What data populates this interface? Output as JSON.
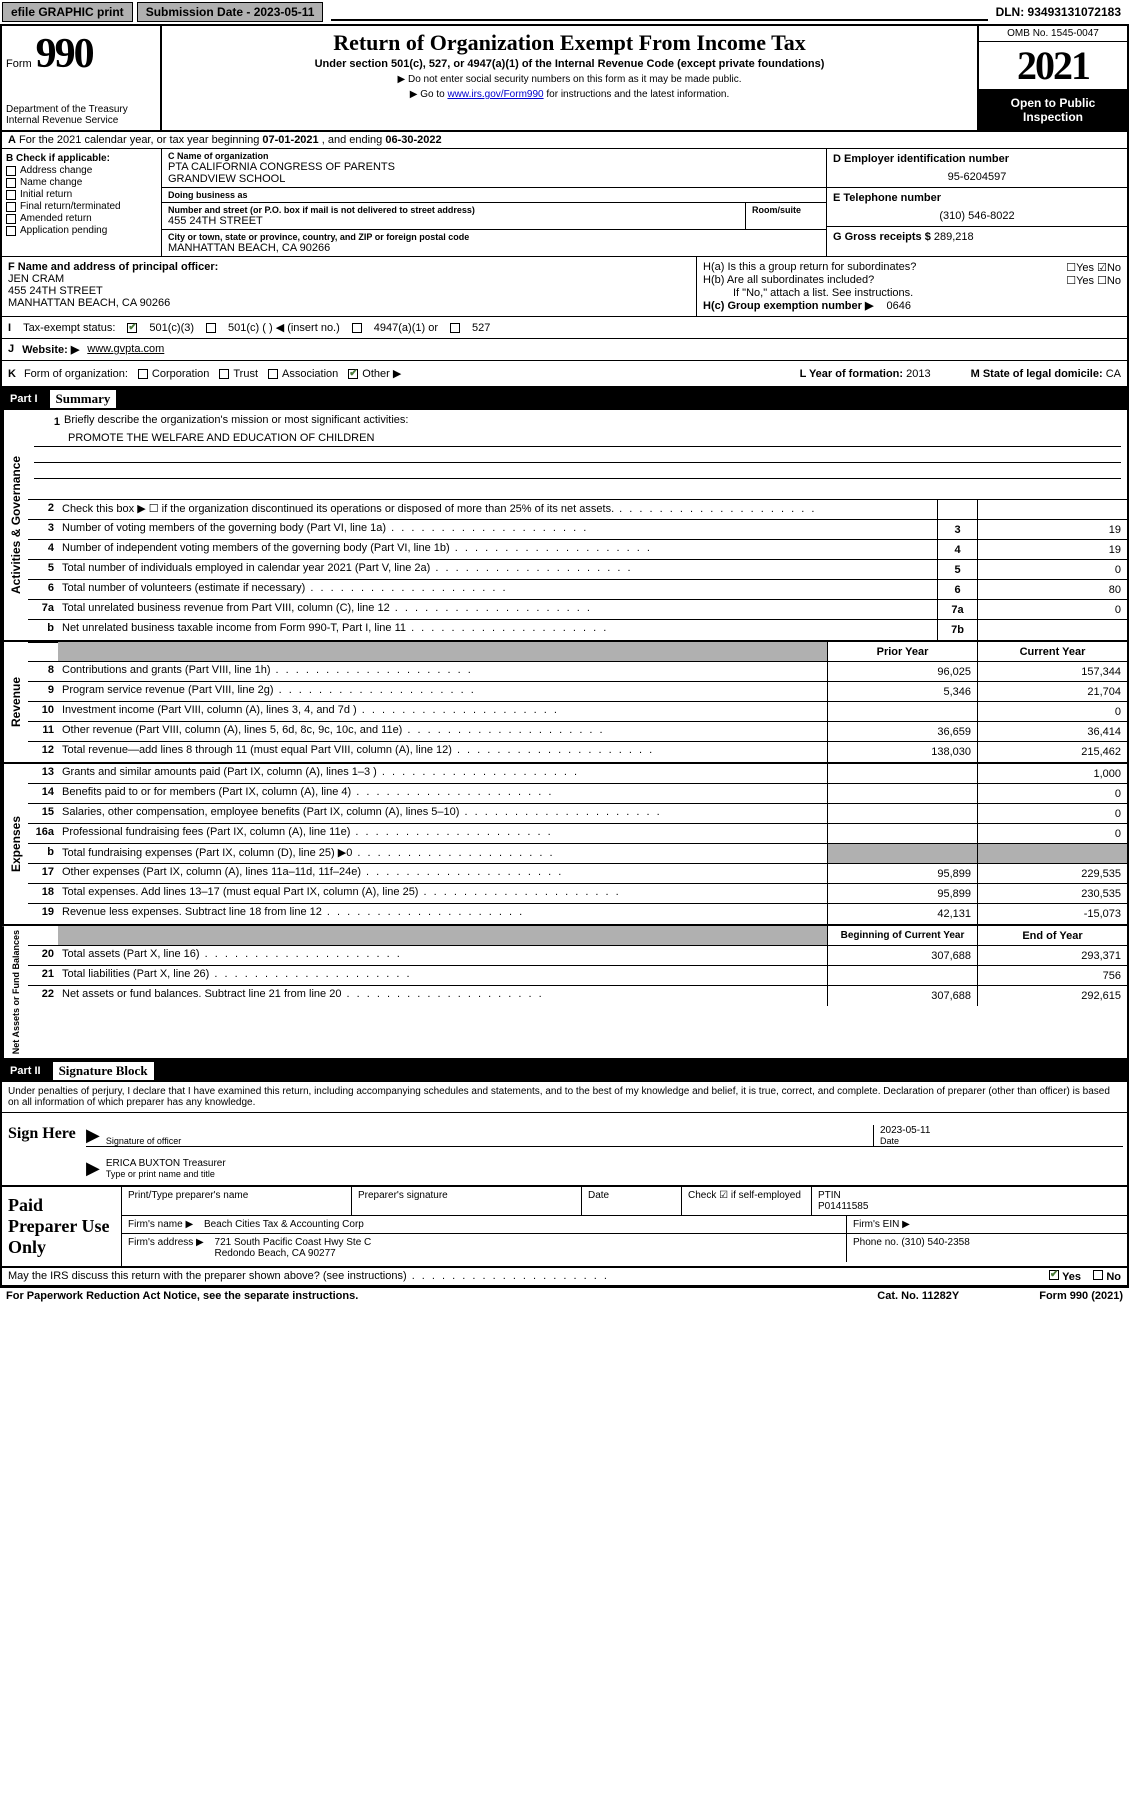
{
  "top_bar": {
    "efile": "efile GRAPHIC print",
    "submission_label": "Submission Date - 2023-05-11",
    "dln": "DLN: 93493131072183"
  },
  "header": {
    "form_word": "Form",
    "form_num": "990",
    "dept": "Department of the Treasury\nInternal Revenue Service",
    "title": "Return of Organization Exempt From Income Tax",
    "sub": "Under section 501(c), 527, or 4947(a)(1) of the Internal Revenue Code (except private foundations)",
    "note1": "Do not enter social security numbers on this form as it may be made public.",
    "note2_pre": "Go to ",
    "note2_link": "www.irs.gov/Form990",
    "note2_post": " for instructions and the latest information.",
    "omb": "OMB No. 1545-0047",
    "year": "2021",
    "inspection": "Open to Public Inspection"
  },
  "row_a": {
    "label_a": "A",
    "text": "For the 2021 calendar year, or tax year beginning ",
    "begin": "07-01-2021",
    "mid": " , and ending ",
    "end": "06-30-2022"
  },
  "section_b": {
    "label": "B Check if applicable:",
    "items": [
      "Address change",
      "Name change",
      "Initial return",
      "Final return/terminated",
      "Amended return",
      "Application pending"
    ]
  },
  "section_c": {
    "name_label": "C Name of organization",
    "name": "PTA CALIFORNIA CONGRESS OF PARENTS\nGRANDVIEW SCHOOL",
    "dba_label": "Doing business as",
    "dba": "",
    "addr_label": "Number and street (or P.O. box if mail is not delivered to street address)",
    "room_label": "Room/suite",
    "addr": "455 24TH STREET",
    "city_label": "City or town, state or province, country, and ZIP or foreign postal code",
    "city": "MANHATTAN BEACH, CA  90266"
  },
  "section_d": {
    "label": "D Employer identification number",
    "val": "95-6204597"
  },
  "section_e": {
    "label": "E Telephone number",
    "val": "(310) 546-8022"
  },
  "section_g": {
    "label": "G Gross receipts $",
    "val": "289,218"
  },
  "section_f": {
    "label": "F Name and address of principal officer:",
    "name": "JEN CRAM",
    "addr": "455 24TH STREET\nMANHATTAN BEACH, CA  90266"
  },
  "section_h": {
    "ha": "H(a)  Is this a group return for subordinates?",
    "ha_ans": "No",
    "hb": "H(b)  Are all subordinates included?",
    "hb_note": "If \"No,\" attach a list. See instructions.",
    "hc": "H(c)  Group exemption number ▶",
    "hc_val": "0646"
  },
  "row_i": {
    "label": "I",
    "text": "Tax-exempt status:",
    "opts": [
      "501(c)(3)",
      "501(c) (  ) ◀ (insert no.)",
      "4947(a)(1) or",
      "527"
    ]
  },
  "row_j": {
    "label": "J",
    "text": "Website: ▶",
    "val": "www.gvpta.com"
  },
  "row_k": {
    "label": "K",
    "text": "Form of organization:",
    "opts": [
      "Corporation",
      "Trust",
      "Association",
      "Other ▶"
    ],
    "l_label": "L Year of formation:",
    "l_val": "2013",
    "m_label": "M State of legal domicile:",
    "m_val": "CA"
  },
  "part1": {
    "num": "Part I",
    "title": "Summary"
  },
  "mission": {
    "num": "1",
    "label": "Briefly describe the organization's mission or most significant activities:",
    "text": "PROMOTE THE WELFARE AND EDUCATION OF CHILDREN"
  },
  "governance": {
    "label": "Activities & Governance",
    "rows": [
      {
        "n": "2",
        "t": "Check this box ▶ ☐  if the organization discontinued its operations or disposed of more than 25% of its net assets.",
        "c": "",
        "v": ""
      },
      {
        "n": "3",
        "t": "Number of voting members of the governing body (Part VI, line 1a)",
        "c": "3",
        "v": "19"
      },
      {
        "n": "4",
        "t": "Number of independent voting members of the governing body (Part VI, line 1b)",
        "c": "4",
        "v": "19"
      },
      {
        "n": "5",
        "t": "Total number of individuals employed in calendar year 2021 (Part V, line 2a)",
        "c": "5",
        "v": "0"
      },
      {
        "n": "6",
        "t": "Total number of volunteers (estimate if necessary)",
        "c": "6",
        "v": "80"
      },
      {
        "n": "7a",
        "t": "Total unrelated business revenue from Part VIII, column (C), line 12",
        "c": "7a",
        "v": "0"
      },
      {
        "n": "b",
        "t": "Net unrelated business taxable income from Form 990-T, Part I, line 11",
        "c": "7b",
        "v": ""
      }
    ]
  },
  "revenue": {
    "label": "Revenue",
    "head_prior": "Prior Year",
    "head_current": "Current Year",
    "rows": [
      {
        "n": "8",
        "t": "Contributions and grants (Part VIII, line 1h)",
        "p": "96,025",
        "c": "157,344"
      },
      {
        "n": "9",
        "t": "Program service revenue (Part VIII, line 2g)",
        "p": "5,346",
        "c": "21,704"
      },
      {
        "n": "10",
        "t": "Investment income (Part VIII, column (A), lines 3, 4, and 7d )",
        "p": "",
        "c": "0"
      },
      {
        "n": "11",
        "t": "Other revenue (Part VIII, column (A), lines 5, 6d, 8c, 9c, 10c, and 11e)",
        "p": "36,659",
        "c": "36,414"
      },
      {
        "n": "12",
        "t": "Total revenue—add lines 8 through 11 (must equal Part VIII, column (A), line 12)",
        "p": "138,030",
        "c": "215,462"
      }
    ]
  },
  "expenses": {
    "label": "Expenses",
    "rows": [
      {
        "n": "13",
        "t": "Grants and similar amounts paid (Part IX, column (A), lines 1–3 )",
        "p": "",
        "c": "1,000"
      },
      {
        "n": "14",
        "t": "Benefits paid to or for members (Part IX, column (A), line 4)",
        "p": "",
        "c": "0"
      },
      {
        "n": "15",
        "t": "Salaries, other compensation, employee benefits (Part IX, column (A), lines 5–10)",
        "p": "",
        "c": "0"
      },
      {
        "n": "16a",
        "t": "Professional fundraising fees (Part IX, column (A), line 11e)",
        "p": "",
        "c": "0"
      },
      {
        "n": "b",
        "t": "Total fundraising expenses (Part IX, column (D), line 25) ▶0",
        "p": "grey",
        "c": "grey"
      },
      {
        "n": "17",
        "t": "Other expenses (Part IX, column (A), lines 11a–11d, 11f–24e)",
        "p": "95,899",
        "c": "229,535"
      },
      {
        "n": "18",
        "t": "Total expenses. Add lines 13–17 (must equal Part IX, column (A), line 25)",
        "p": "95,899",
        "c": "230,535"
      },
      {
        "n": "19",
        "t": "Revenue less expenses. Subtract line 18 from line 12",
        "p": "42,131",
        "c": "-15,073"
      }
    ]
  },
  "netassets": {
    "label": "Net Assets or Fund Balances",
    "head_begin": "Beginning of Current Year",
    "head_end": "End of Year",
    "rows": [
      {
        "n": "20",
        "t": "Total assets (Part X, line 16)",
        "p": "307,688",
        "c": "293,371"
      },
      {
        "n": "21",
        "t": "Total liabilities (Part X, line 26)",
        "p": "",
        "c": "756"
      },
      {
        "n": "22",
        "t": "Net assets or fund balances. Subtract line 21 from line 20",
        "p": "307,688",
        "c": "292,615"
      }
    ]
  },
  "part2": {
    "num": "Part II",
    "title": "Signature Block"
  },
  "perjury": "Under penalties of perjury, I declare that I have examined this return, including accompanying schedules and statements, and to the best of my knowledge and belief, it is true, correct, and complete. Declaration of preparer (other than officer) is based on all information of which preparer has any knowledge.",
  "sign": {
    "label": "Sign Here",
    "sig_label": "Signature of officer",
    "date_val": "2023-05-11",
    "date_label": "Date",
    "name": "ERICA BUXTON Treasurer",
    "name_label": "Type or print name and title"
  },
  "paid": {
    "label": "Paid Preparer Use Only",
    "h_print": "Print/Type preparer's name",
    "h_sig": "Preparer's signature",
    "h_date": "Date",
    "h_self": "Check ☑ if self-employed",
    "h_ptin": "PTIN",
    "ptin": "P01411585",
    "firm_name_l": "Firm's name    ▶",
    "firm_name": "Beach Cities Tax & Accounting Corp",
    "firm_ein_l": "Firm's EIN ▶",
    "firm_addr_l": "Firm's address ▶",
    "firm_addr": "721 South Pacific Coast Hwy Ste C\nRedondo Beach, CA  90277",
    "phone_l": "Phone no.",
    "phone": "(310) 540-2358"
  },
  "footer": {
    "discuss": "May the IRS discuss this return with the preparer shown above? (see instructions)",
    "yes": "Yes",
    "no": "No",
    "pra": "For Paperwork Reduction Act Notice, see the separate instructions.",
    "cat": "Cat. No. 11282Y",
    "form": "Form 990 (2021)"
  },
  "colors": {
    "black": "#000000",
    "grey_btn": "#b0b0b0",
    "link": "#0000cc",
    "check_green": "#4a7a3a"
  }
}
